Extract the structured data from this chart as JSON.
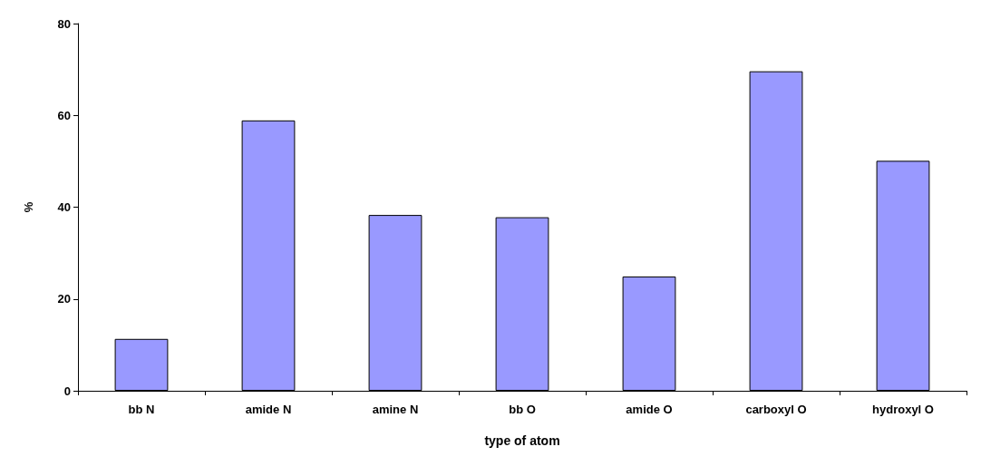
{
  "chart_data": {
    "type": "bar",
    "xlabel": "type of atom",
    "ylabel": "%",
    "categories": [
      "bb N",
      "amide N",
      "amine N",
      "bb O",
      "amide O",
      "carboxyl O",
      "hydroxyl O"
    ],
    "values": [
      11.3,
      58.9,
      38.3,
      37.8,
      24.9,
      69.6,
      50.1
    ],
    "color": "#9999ff",
    "ylim": [
      0,
      80
    ],
    "yticks": [
      0,
      20,
      40,
      60,
      80
    ],
    "grid": false
  }
}
